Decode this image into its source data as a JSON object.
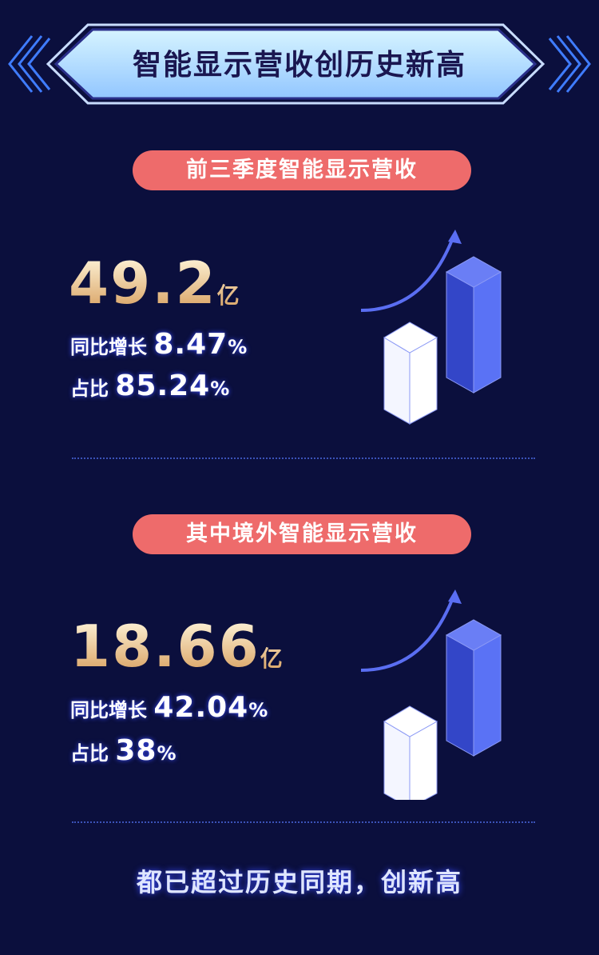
{
  "header": {
    "title": "智能显示营收创历史新高"
  },
  "sections": [
    {
      "pill": "前三季度智能显示营收",
      "value": "49.2",
      "unit": "亿",
      "growth_label": "同比增长",
      "growth": "8.47",
      "share_label": "占比",
      "share": "85.24",
      "pct": "%"
    },
    {
      "pill": "其中境外智能显示营收",
      "value": "18.66",
      "unit": "亿",
      "growth_label": "同比增长",
      "growth": "42.04",
      "share_label": "占比",
      "share": "38",
      "pct": "%"
    }
  ],
  "footer": {
    "text": "都已超过历史同期，创新高"
  },
  "colors": {
    "background": "#0b0f3d",
    "pill": "#ee6b6b",
    "bar_blue": "#5a6ef2",
    "accent_gold": "#d8a060"
  }
}
